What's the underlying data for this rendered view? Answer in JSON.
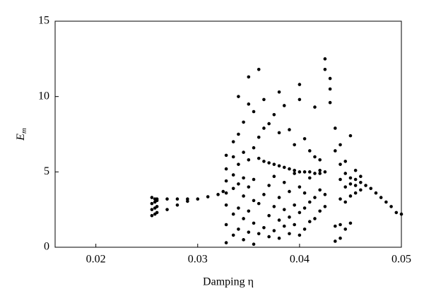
{
  "chart_data": {
    "type": "scatter",
    "xlabel": "Damping η",
    "ylabel": "E",
    "ylabel_sub": "m",
    "xlim": [
      0.016,
      0.05
    ],
    "ylim": [
      0,
      15
    ],
    "xticks": [
      0.02,
      0.03,
      0.04,
      0.05
    ],
    "yticks": [
      0,
      5,
      10,
      15
    ],
    "color": "#000000",
    "x": [
      0.0255,
      0.0255,
      0.0255,
      0.0255,
      0.0258,
      0.0258,
      0.0258,
      0.0258,
      0.026,
      0.026,
      0.026,
      0.026,
      0.027,
      0.028,
      0.029,
      0.027,
      0.028,
      0.029,
      0.03,
      0.031,
      0.032,
      0.0325,
      0.0328,
      0.0328,
      0.0328,
      0.0328,
      0.0328,
      0.0328,
      0.0328,
      0.0335,
      0.0335,
      0.0335,
      0.0335,
      0.0335,
      0.0335,
      0.034,
      0.034,
      0.034,
      0.034,
      0.034,
      0.034,
      0.0345,
      0.0345,
      0.0345,
      0.0345,
      0.0345,
      0.0345,
      0.035,
      0.035,
      0.035,
      0.035,
      0.035,
      0.035,
      0.0355,
      0.0355,
      0.0355,
      0.0355,
      0.0355,
      0.0355,
      0.036,
      0.036,
      0.036,
      0.036,
      0.036,
      0.0365,
      0.0365,
      0.0365,
      0.0365,
      0.0365,
      0.037,
      0.037,
      0.037,
      0.037,
      0.037,
      0.0375,
      0.0375,
      0.0375,
      0.0375,
      0.0375,
      0.038,
      0.038,
      0.038,
      0.038,
      0.038,
      0.038,
      0.0385,
      0.0385,
      0.0385,
      0.0385,
      0.0385,
      0.039,
      0.039,
      0.039,
      0.039,
      0.039,
      0.0395,
      0.0395,
      0.0395,
      0.0395,
      0.0395,
      0.04,
      0.04,
      0.04,
      0.04,
      0.04,
      0.04,
      0.0405,
      0.0405,
      0.0405,
      0.0405,
      0.0405,
      0.041,
      0.041,
      0.041,
      0.041,
      0.041,
      0.0415,
      0.0415,
      0.0415,
      0.0415,
      0.0415,
      0.042,
      0.042,
      0.042,
      0.042,
      0.042,
      0.0425,
      0.0425,
      0.0425,
      0.0425,
      0.0425,
      0.043,
      0.043,
      0.043,
      0.0435,
      0.0435,
      0.0435,
      0.0435,
      0.044,
      0.044,
      0.044,
      0.044,
      0.044,
      0.044,
      0.0445,
      0.0445,
      0.0445,
      0.0445,
      0.0445,
      0.045,
      0.045,
      0.045,
      0.045,
      0.045,
      0.0455,
      0.0455,
      0.0455,
      0.0455,
      0.046,
      0.046,
      0.046,
      0.0465,
      0.047,
      0.0475,
      0.048,
      0.0485,
      0.049,
      0.0495,
      0.05
    ],
    "values": [
      2.1,
      2.5,
      2.9,
      3.3,
      2.2,
      2.6,
      3.0,
      3.2,
      2.3,
      2.7,
      3.1,
      3.2,
      3.2,
      3.2,
      3.2,
      2.5,
      2.8,
      3.05,
      3.2,
      3.35,
      3.5,
      3.7,
      0.3,
      1.5,
      2.8,
      3.6,
      4.4,
      5.2,
      6.1,
      0.8,
      2.2,
      3.9,
      4.8,
      6.0,
      7.0,
      1.2,
      2.6,
      4.2,
      5.5,
      7.5,
      10.0,
      0.5,
      1.9,
      3.4,
      4.6,
      6.3,
      8.3,
      1.0,
      2.4,
      4.0,
      5.8,
      9.5,
      11.3,
      0.2,
      1.6,
      3.1,
      4.5,
      6.6,
      9.0,
      0.9,
      2.9,
      5.9,
      7.3,
      11.8,
      1.3,
      3.5,
      5.7,
      7.9,
      9.8,
      0.7,
      2.1,
      4.1,
      5.6,
      8.2,
      1.1,
      2.7,
      4.7,
      5.5,
      8.8,
      0.6,
      1.8,
      3.3,
      5.4,
      7.6,
      10.3,
      1.4,
      2.5,
      4.3,
      5.3,
      9.4,
      0.9,
      2.0,
      3.7,
      5.2,
      7.8,
      1.5,
      2.8,
      4.9,
      5.1,
      6.8,
      0.8,
      2.3,
      4.0,
      5.0,
      10.8,
      9.8,
      1.2,
      2.6,
      3.6,
      5.0,
      7.2,
      1.7,
      3.0,
      4.6,
      5.0,
      6.4,
      1.9,
      3.3,
      4.9,
      6.0,
      9.3,
      2.4,
      3.8,
      4.9,
      5.1,
      5.8,
      2.7,
      3.5,
      5.0,
      11.8,
      12.5,
      10.5,
      9.6,
      11.2,
      0.4,
      1.4,
      7.9,
      6.4,
      0.6,
      1.5,
      3.2,
      4.5,
      5.5,
      6.8,
      1.2,
      3.0,
      4.0,
      4.9,
      5.7,
      1.6,
      3.4,
      4.2,
      4.6,
      7.4,
      3.6,
      4.1,
      4.5,
      5.1,
      3.8,
      4.3,
      4.7,
      4.1,
      3.9,
      3.6,
      3.3,
      3.0,
      2.7,
      2.3,
      2.2
    ]
  }
}
